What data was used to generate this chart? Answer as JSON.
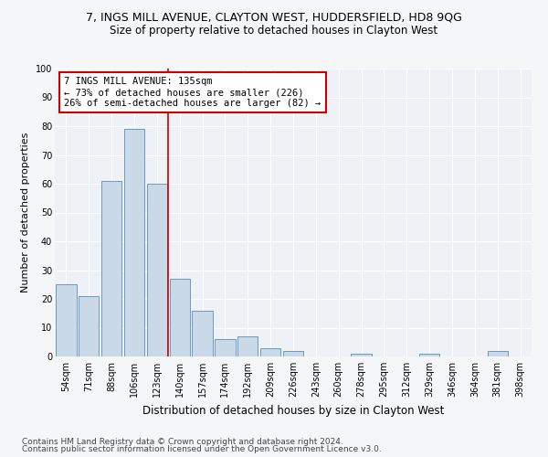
{
  "title1": "7, INGS MILL AVENUE, CLAYTON WEST, HUDDERSFIELD, HD8 9QG",
  "title2": "Size of property relative to detached houses in Clayton West",
  "xlabel": "Distribution of detached houses by size in Clayton West",
  "ylabel": "Number of detached properties",
  "footnote1": "Contains HM Land Registry data © Crown copyright and database right 2024.",
  "footnote2": "Contains public sector information licensed under the Open Government Licence v3.0.",
  "bin_labels": [
    "54sqm",
    "71sqm",
    "88sqm",
    "106sqm",
    "123sqm",
    "140sqm",
    "157sqm",
    "174sqm",
    "192sqm",
    "209sqm",
    "226sqm",
    "243sqm",
    "260sqm",
    "278sqm",
    "295sqm",
    "312sqm",
    "329sqm",
    "346sqm",
    "364sqm",
    "381sqm",
    "398sqm"
  ],
  "bin_values": [
    25,
    21,
    61,
    79,
    60,
    27,
    16,
    6,
    7,
    3,
    2,
    0,
    0,
    1,
    0,
    0,
    1,
    0,
    0,
    2,
    0
  ],
  "bar_color": "#c9d9e8",
  "bar_edge_color": "#5b8db8",
  "vline_color": "#cc0000",
  "vline_x": 4.5,
  "annotation_text": "7 INGS MILL AVENUE: 135sqm\n← 73% of detached houses are smaller (226)\n26% of semi-detached houses are larger (82) →",
  "annotation_box_color": "#cc0000",
  "ylim": [
    0,
    100
  ],
  "yticks": [
    0,
    10,
    20,
    30,
    40,
    50,
    60,
    70,
    80,
    90,
    100
  ],
  "plot_bg_color": "#eef1f5",
  "fig_bg_color": "#f5f6f7",
  "title1_fontsize": 9,
  "title2_fontsize": 8.5,
  "footnote_fontsize": 6.5,
  "ylabel_fontsize": 8,
  "xlabel_fontsize": 8.5,
  "tick_fontsize": 7,
  "annot_fontsize": 7.5
}
